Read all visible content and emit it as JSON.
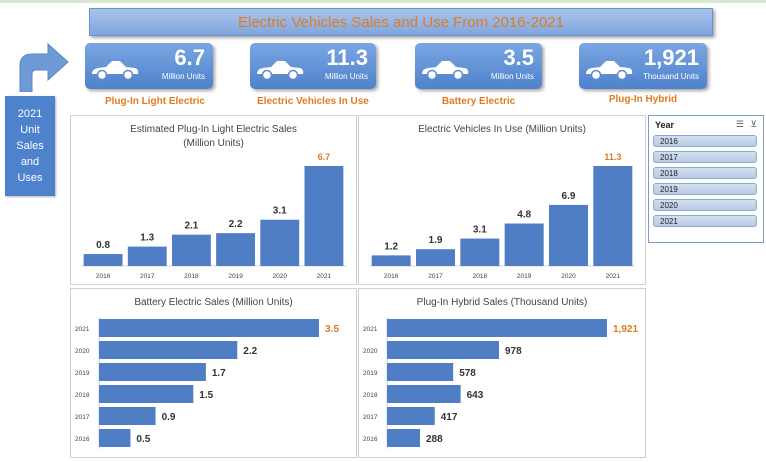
{
  "title": "Electric Vehicles Sales and Use From 2016-2021",
  "side_label": "2021 Unit Sales and Uses",
  "colors": {
    "bar": "#4f7ec4",
    "highlight": "#e07b22",
    "card": "#5b8bd4"
  },
  "kpis": [
    {
      "value": "6.7",
      "unit": "Million Units",
      "label": "Plug-In Light Electric"
    },
    {
      "value": "11.3",
      "unit": "Million Units",
      "label": "Electric Vehicles In Use"
    },
    {
      "value": "3.5",
      "unit": "Million Units",
      "label": "Battery Electric"
    },
    {
      "value": "1,921",
      "unit": "Thousand Units",
      "label": "Plug-In Hybrid"
    }
  ],
  "slicer": {
    "title": "Year",
    "items": [
      "2016",
      "2017",
      "2018",
      "2019",
      "2020",
      "2021"
    ]
  },
  "chart_data": [
    {
      "type": "bar",
      "title": "Estimated Plug-In Light Electric Sales (Million Units)",
      "categories": [
        "2016",
        "2017",
        "2018",
        "2019",
        "2020",
        "2021"
      ],
      "values": [
        0.8,
        1.3,
        2.1,
        2.2,
        3.1,
        6.7
      ],
      "labels": [
        "0.8",
        "1.3",
        "2.1",
        "2.2",
        "3.1",
        "6.7"
      ]
    },
    {
      "type": "bar",
      "title": "Electric Vehicles In Use (Million Units)",
      "categories": [
        "2016",
        "2017",
        "2018",
        "2019",
        "2020",
        "2021"
      ],
      "values": [
        1.2,
        1.9,
        3.1,
        4.8,
        6.9,
        11.3
      ],
      "labels": [
        "1.2",
        "1.9",
        "3.1",
        "4.8",
        "6.9",
        "11.3"
      ]
    },
    {
      "type": "bar",
      "orientation": "horizontal",
      "title": "Battery Electric Sales (Million Units)",
      "categories": [
        "2021",
        "2020",
        "2019",
        "2018",
        "2017",
        "2016"
      ],
      "values": [
        3.5,
        2.2,
        1.7,
        1.5,
        0.9,
        0.5
      ],
      "labels": [
        "3.5",
        "2.2",
        "1.7",
        "1.5",
        "0.9",
        "0.5"
      ]
    },
    {
      "type": "bar",
      "orientation": "horizontal",
      "title": "Plug-In Hybrid Sales (Thousand Units)",
      "categories": [
        "2021",
        "2020",
        "2019",
        "2018",
        "2017",
        "2016"
      ],
      "values": [
        1921,
        978,
        578,
        643,
        417,
        288
      ],
      "labels": [
        "1,921",
        "978",
        "578",
        "643",
        "417",
        "288"
      ]
    }
  ]
}
